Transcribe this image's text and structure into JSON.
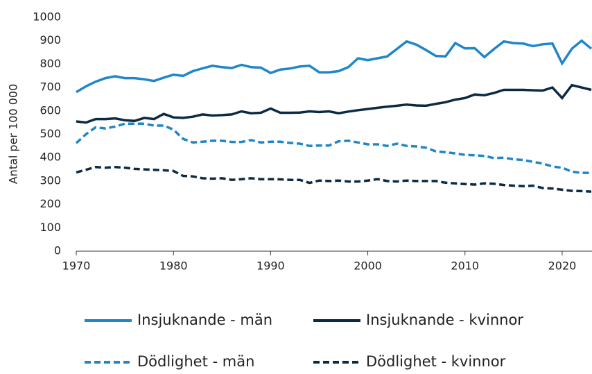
{
  "chart_data": {
    "type": "line",
    "y_label": "Antal per 100 000",
    "x": [
      1970,
      1971,
      1972,
      1973,
      1974,
      1975,
      1976,
      1977,
      1978,
      1979,
      1980,
      1981,
      1982,
      1983,
      1984,
      1985,
      1986,
      1987,
      1988,
      1989,
      1990,
      1991,
      1992,
      1993,
      1994,
      1995,
      1996,
      1997,
      1998,
      1999,
      2000,
      2001,
      2002,
      2003,
      2004,
      2005,
      2006,
      2007,
      2008,
      2009,
      2010,
      2011,
      2012,
      2013,
      2014,
      2015,
      2016,
      2017,
      2018,
      2019,
      2020,
      2021,
      2022,
      2023
    ],
    "xlim": [
      1970,
      2023
    ],
    "xticks": [
      1970,
      1980,
      1990,
      2000,
      2010,
      2020
    ],
    "ylim": [
      0,
      1000
    ],
    "yticks": [
      0,
      100,
      200,
      300,
      400,
      500,
      600,
      700,
      800,
      900,
      1000
    ],
    "series": [
      {
        "name": "Insjuknande - män",
        "color": "#1f86c8",
        "dashed": false,
        "values": [
          680,
          705,
          725,
          740,
          748,
          740,
          740,
          735,
          728,
          742,
          755,
          750,
          770,
          782,
          793,
          787,
          783,
          797,
          787,
          785,
          762,
          777,
          781,
          790,
          793,
          765,
          765,
          770,
          787,
          825,
          817,
          825,
          833,
          865,
          897,
          883,
          860,
          835,
          833,
          890,
          867,
          868,
          830,
          865,
          897,
          890,
          888,
          877,
          885,
          888,
          803,
          866,
          900,
          866
        ]
      },
      {
        "name": "Insjuknande - kvinnor",
        "color": "#0c2a44",
        "dashed": false,
        "values": [
          555,
          550,
          565,
          565,
          568,
          560,
          557,
          570,
          565,
          587,
          572,
          570,
          575,
          585,
          580,
          582,
          585,
          598,
          590,
          592,
          610,
          592,
          592,
          593,
          598,
          595,
          598,
          590,
          597,
          603,
          608,
          613,
          618,
          622,
          627,
          623,
          622,
          630,
          637,
          648,
          655,
          670,
          667,
          677,
          690,
          690,
          690,
          688,
          687,
          700,
          655,
          710,
          700,
          690
        ]
      },
      {
        "name": "Dödlighet - män",
        "color": "#1f86c8",
        "dashed": true,
        "values": [
          462,
          500,
          530,
          525,
          533,
          545,
          545,
          545,
          537,
          537,
          520,
          480,
          465,
          468,
          472,
          472,
          467,
          467,
          475,
          465,
          468,
          468,
          463,
          460,
          450,
          452,
          452,
          470,
          472,
          465,
          457,
          457,
          450,
          460,
          450,
          448,
          442,
          427,
          423,
          418,
          412,
          410,
          407,
          398,
          400,
          393,
          390,
          382,
          375,
          362,
          357,
          340,
          335,
          335
        ]
      },
      {
        "name": "Dödlighet - kvinnor",
        "color": "#0c2a44",
        "dashed": true,
        "values": [
          337,
          348,
          360,
          357,
          360,
          357,
          352,
          350,
          348,
          346,
          343,
          322,
          320,
          312,
          310,
          312,
          305,
          308,
          312,
          308,
          308,
          307,
          305,
          305,
          292,
          302,
          300,
          302,
          298,
          298,
          302,
          308,
          300,
          298,
          302,
          300,
          300,
          300,
          293,
          290,
          287,
          285,
          290,
          288,
          283,
          280,
          278,
          280,
          270,
          268,
          263,
          258,
          257,
          255
        ]
      }
    ]
  }
}
